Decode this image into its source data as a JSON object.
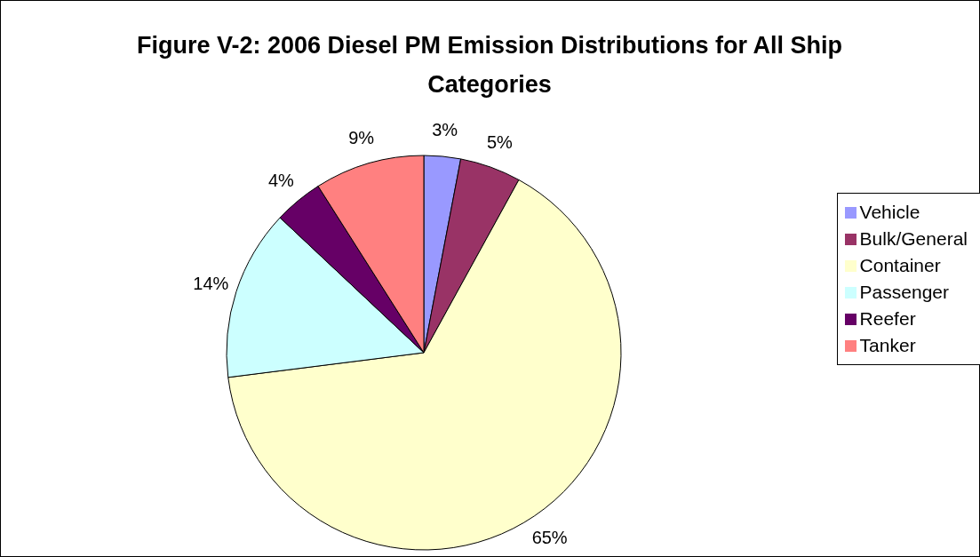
{
  "chart_data": {
    "type": "pie",
    "title": "Figure V-2: 2006 Diesel PM Emission Distributions for All Ship Categories",
    "categories": [
      "Vehicle",
      "Bulk/General",
      "Container",
      "Passenger",
      "Reefer",
      "Tanker"
    ],
    "values": [
      3,
      5,
      65,
      14,
      4,
      9
    ],
    "value_labels": [
      "3%",
      "5%",
      "65%",
      "14%",
      "4%",
      "9%"
    ],
    "colors": [
      "#9999ff",
      "#993366",
      "#ffffcc",
      "#ccffff",
      "#660066",
      "#ff8080"
    ],
    "legend": "right"
  }
}
